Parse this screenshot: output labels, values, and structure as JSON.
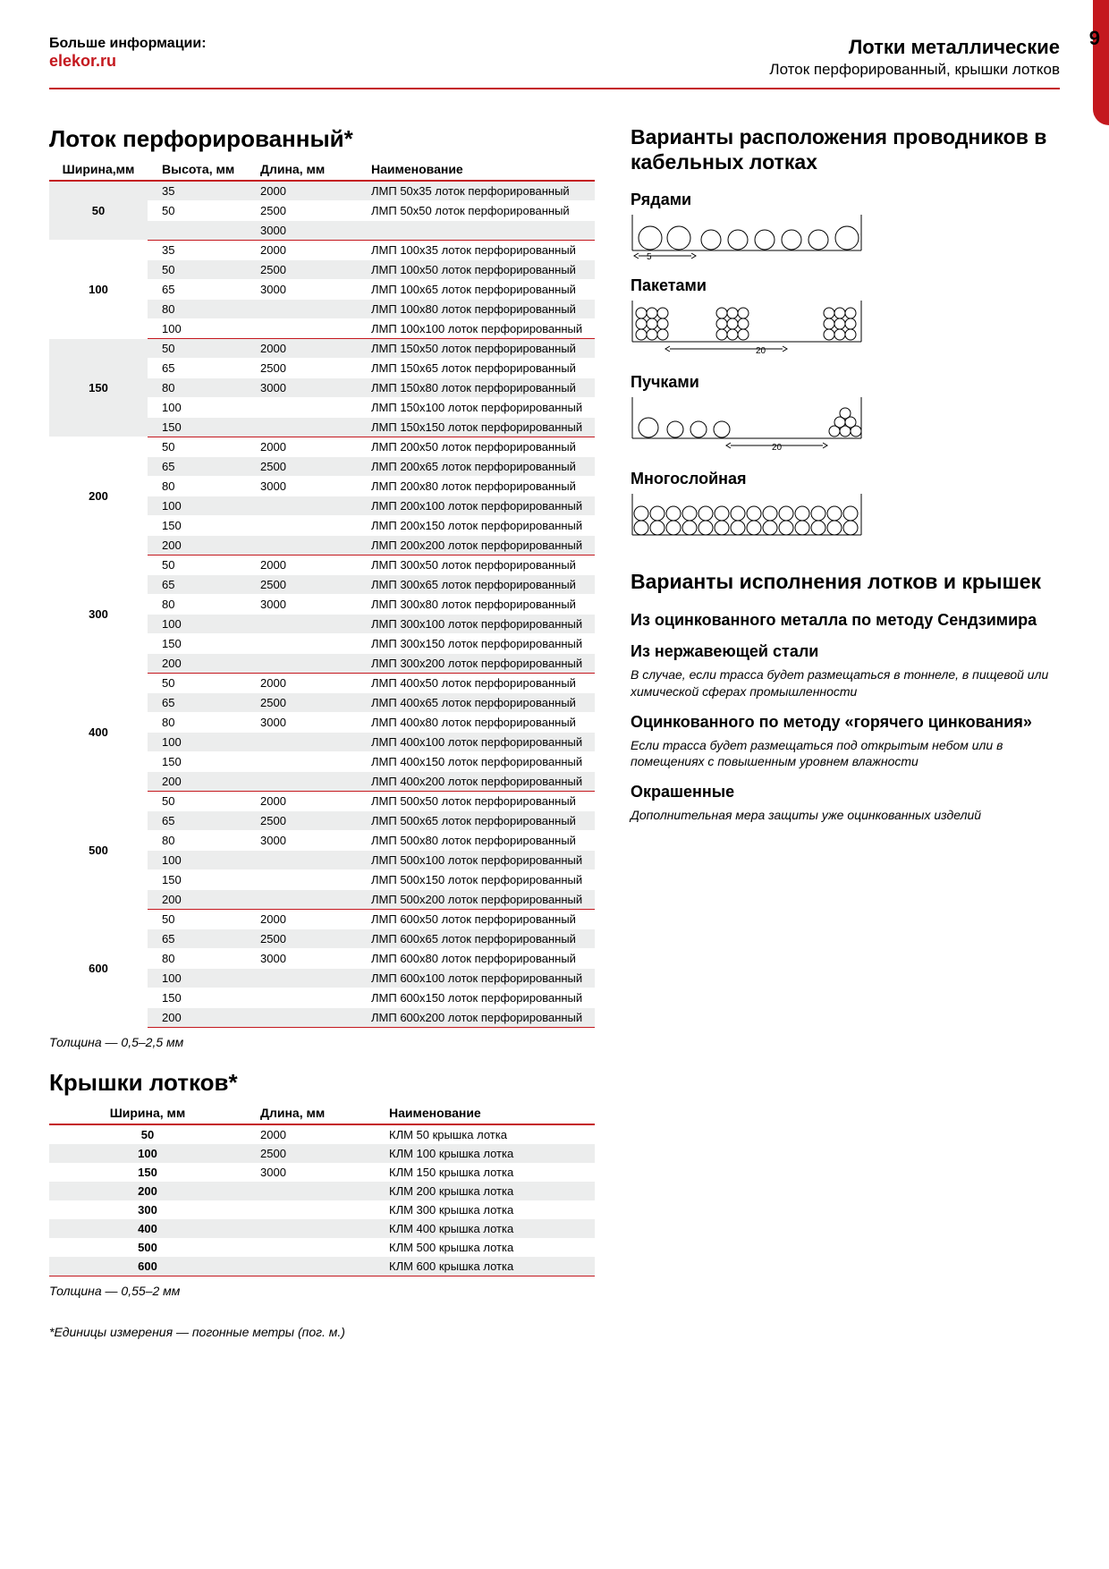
{
  "header": {
    "more_info": "Больше информации:",
    "site": "elekor.ru",
    "category_title": "Лотки металлические",
    "category_sub": "Лоток перфорированный, крышки лотков",
    "page_number": "9"
  },
  "colors": {
    "accent": "#c4181e",
    "row_alt_bg": "#eceded",
    "text": "#000000",
    "bg": "#ffffff"
  },
  "table1": {
    "title": "Лоток перфорированный*",
    "columns": [
      "Ширина,мм",
      "Высота, мм",
      "Длина, мм",
      "Наименование"
    ],
    "thickness_note": "Толщина — 0,5–2,5 мм",
    "groups": [
      {
        "width": "50",
        "lengths": [
          "2000",
          "2500",
          "3000"
        ],
        "rows": [
          {
            "h": "35",
            "name": "ЛМП 50х35 лоток перфорированный"
          },
          {
            "h": "50",
            "name": "ЛМП 50х50 лоток перфорированный"
          }
        ],
        "extra_length_row": true
      },
      {
        "width": "100",
        "lengths": [
          "2000",
          "2500",
          "3000"
        ],
        "rows": [
          {
            "h": "35",
            "name": "ЛМП 100х35 лоток перфорированный"
          },
          {
            "h": "50",
            "name": "ЛМП 100х50 лоток перфорированный"
          },
          {
            "h": "65",
            "name": "ЛМП 100х65 лоток перфорированный"
          },
          {
            "h": "80",
            "name": "ЛМП 100х80 лоток перфорированный"
          },
          {
            "h": "100",
            "name": "ЛМП 100х100 лоток перфорированный"
          }
        ]
      },
      {
        "width": "150",
        "lengths": [
          "2000",
          "2500",
          "3000"
        ],
        "rows": [
          {
            "h": "50",
            "name": "ЛМП 150х50 лоток перфорированный"
          },
          {
            "h": "65",
            "name": "ЛМП 150х65 лоток перфорированный"
          },
          {
            "h": "80",
            "name": "ЛМП 150х80 лоток перфорированный"
          },
          {
            "h": "100",
            "name": "ЛМП 150х100 лоток перфорированный"
          },
          {
            "h": "150",
            "name": "ЛМП 150х150 лоток перфорированный"
          }
        ]
      },
      {
        "width": "200",
        "lengths": [
          "2000",
          "2500",
          "3000"
        ],
        "rows": [
          {
            "h": "50",
            "name": "ЛМП 200х50 лоток перфорированный"
          },
          {
            "h": "65",
            "name": "ЛМП 200х65 лоток перфорированный"
          },
          {
            "h": "80",
            "name": "ЛМП 200х80 лоток перфорированный"
          },
          {
            "h": "100",
            "name": "ЛМП 200х100 лоток перфорированный"
          },
          {
            "h": "150",
            "name": "ЛМП 200х150 лоток перфорированный"
          },
          {
            "h": "200",
            "name": "ЛМП 200х200 лоток перфорированный"
          }
        ]
      },
      {
        "width": "300",
        "lengths": [
          "2000",
          "2500",
          "3000"
        ],
        "rows": [
          {
            "h": "50",
            "name": "ЛМП 300х50 лоток перфорированный"
          },
          {
            "h": "65",
            "name": "ЛМП 300х65 лоток перфорированный"
          },
          {
            "h": "80",
            "name": "ЛМП 300х80 лоток перфорированный"
          },
          {
            "h": "100",
            "name": "ЛМП 300х100 лоток перфорированный"
          },
          {
            "h": "150",
            "name": "ЛМП 300х150 лоток перфорированный"
          },
          {
            "h": "200",
            "name": "ЛМП 300х200 лоток перфорированный"
          }
        ]
      },
      {
        "width": "400",
        "lengths": [
          "2000",
          "2500",
          "3000"
        ],
        "rows": [
          {
            "h": "50",
            "name": "ЛМП 400х50 лоток перфорированный"
          },
          {
            "h": "65",
            "name": "ЛМП 400х65 лоток перфорированный"
          },
          {
            "h": "80",
            "name": "ЛМП 400х80 лоток перфорированный"
          },
          {
            "h": "100",
            "name": "ЛМП 400х100 лоток перфорированный"
          },
          {
            "h": "150",
            "name": "ЛМП 400х150 лоток перфорированный"
          },
          {
            "h": "200",
            "name": "ЛМП 400х200 лоток перфорированный"
          }
        ]
      },
      {
        "width": "500",
        "lengths": [
          "2000",
          "2500",
          "3000"
        ],
        "rows": [
          {
            "h": "50",
            "name": "ЛМП 500х50 лоток перфорированный"
          },
          {
            "h": "65",
            "name": "ЛМП 500х65 лоток перфорированный"
          },
          {
            "h": "80",
            "name": "ЛМП 500х80 лоток перфорированный"
          },
          {
            "h": "100",
            "name": "ЛМП 500х100 лоток перфорированный"
          },
          {
            "h": "150",
            "name": "ЛМП 500х150 лоток перфорированный"
          },
          {
            "h": "200",
            "name": "ЛМП 500х200 лоток перфорированный"
          }
        ]
      },
      {
        "width": "600",
        "lengths": [
          "2000",
          "2500",
          "3000"
        ],
        "rows": [
          {
            "h": "50",
            "name": "ЛМП 600х50 лоток перфорированный"
          },
          {
            "h": "65",
            "name": "ЛМП 600х65 лоток перфорированный"
          },
          {
            "h": "80",
            "name": "ЛМП 600х80 лоток перфорированный"
          },
          {
            "h": "100",
            "name": "ЛМП 600х100 лоток перфорированный"
          },
          {
            "h": "150",
            "name": "ЛМП 600х150 лоток перфорированный"
          },
          {
            "h": "200",
            "name": "ЛМП 600х200 лоток перфорированный"
          }
        ]
      }
    ]
  },
  "table2": {
    "title": "Крышки лотков*",
    "columns": [
      "Ширина, мм",
      "Длина, мм",
      "Наименование"
    ],
    "thickness_note": "Толщина — 0,55–2 мм",
    "lengths": [
      "2000",
      "2500",
      "3000"
    ],
    "rows": [
      {
        "w": "50",
        "name": "КЛМ 50 крышка лотка"
      },
      {
        "w": "100",
        "name": "КЛМ 100 крышка лотка"
      },
      {
        "w": "150",
        "name": "КЛМ 150 крышка лотка"
      },
      {
        "w": "200",
        "name": "КЛМ 200 крышка лотка"
      },
      {
        "w": "300",
        "name": "КЛМ 300 крышка лотка"
      },
      {
        "w": "400",
        "name": "КЛМ 400 крышка лотка"
      },
      {
        "w": "500",
        "name": "КЛМ 500 крышка лотка"
      },
      {
        "w": "600",
        "name": "КЛМ 600 крышка лотка"
      }
    ]
  },
  "sidebar": {
    "arrangement_title": "Варианты расположения проводников в кабельных лотках",
    "labels": {
      "rows": "Рядами",
      "packs": "Пакетами",
      "bundles": "Пучками",
      "multilayer": "Многослойная"
    },
    "dim_labels": {
      "five": "5",
      "twenty": "20"
    },
    "finish_title": "Варианты исполнения лотков и крышек",
    "finishes": [
      {
        "h": "Из оцинкованного металла по методу Сендзимира",
        "body": ""
      },
      {
        "h": "Из нержавеющей стали",
        "body": "В случае, если трасса будет размещаться в тоннеле, в пищевой или химической сферах промышленности"
      },
      {
        "h": "Оцинкованного по методу «горячего цинкования»",
        "body": "Если трасса будет размещаться под открытым небом или в помещениях с повышенным уровнем влажности"
      },
      {
        "h": "Окрашенные",
        "body": "Дополнительная мера защиты уже оцинкованных изделий"
      }
    ]
  },
  "footer_note": "*Единицы измерения — погонные метры (пог. м.)"
}
